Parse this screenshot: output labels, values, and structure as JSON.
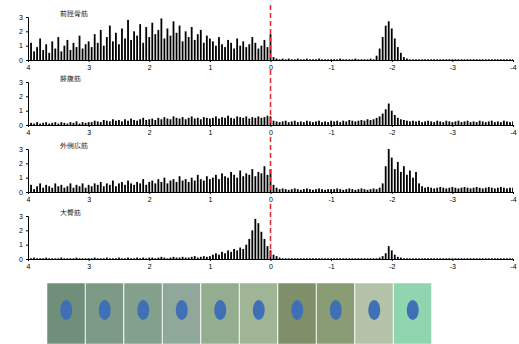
{
  "chart_data": [
    {
      "type": "bar",
      "title": "前脛骨筋",
      "color": "#000000",
      "x": [
        4,
        3.95,
        3.9,
        3.85,
        3.8,
        3.75,
        3.7,
        3.65,
        3.6,
        3.55,
        3.5,
        3.45,
        3.4,
        3.35,
        3.3,
        3.25,
        3.2,
        3.15,
        3.1,
        3.05,
        3,
        2.95,
        2.9,
        2.85,
        2.8,
        2.75,
        2.7,
        2.65,
        2.6,
        2.55,
        2.5,
        2.45,
        2.4,
        2.35,
        2.3,
        2.25,
        2.2,
        2.15,
        2.1,
        2.05,
        2,
        1.95,
        1.9,
        1.85,
        1.8,
        1.75,
        1.7,
        1.65,
        1.6,
        1.55,
        1.5,
        1.45,
        1.4,
        1.35,
        1.3,
        1.25,
        1.2,
        1.15,
        1.1,
        1.05,
        1,
        0.95,
        0.9,
        0.85,
        0.8,
        0.75,
        0.7,
        0.65,
        0.6,
        0.55,
        0.5,
        0.45,
        0.4,
        0.35,
        0.3,
        0.25,
        0.2,
        0.15,
        0.1,
        0.05,
        0,
        -0.05,
        -0.1,
        -0.15,
        -0.2,
        -0.25,
        -0.3,
        -0.35,
        -0.4,
        -0.45,
        -0.5,
        -0.55,
        -0.6,
        -0.65,
        -0.7,
        -0.75,
        -0.8,
        -0.85,
        -0.9,
        -0.95,
        -1,
        -1.05,
        -1.1,
        -1.15,
        -1.2,
        -1.25,
        -1.3,
        -1.35,
        -1.4,
        -1.45,
        -1.5,
        -1.55,
        -1.6,
        -1.65,
        -1.7,
        -1.75,
        -1.8,
        -1.85,
        -1.9,
        -1.95,
        -2,
        -2.05,
        -2.1,
        -2.15,
        -2.2,
        -2.25,
        -2.3,
        -2.35,
        -2.4,
        -2.45,
        -2.5,
        -2.55,
        -2.6,
        -2.65,
        -2.7,
        -2.75,
        -2.8,
        -2.85,
        -2.9,
        -2.95,
        -3,
        -3.05,
        -3.1,
        -3.15,
        -3.2,
        -3.25,
        -3.3,
        -3.35,
        -3.4,
        -3.45,
        -3.5,
        -3.55,
        -3.6,
        -3.65,
        -3.7,
        -3.75,
        -3.8,
        -3.85,
        -3.9,
        -3.95,
        -4
      ],
      "values": [
        0.4,
        1.2,
        0.6,
        0.9,
        1.5,
        0.7,
        1.1,
        0.5,
        1.3,
        0.8,
        1.6,
        0.6,
        1.0,
        1.4,
        0.7,
        1.2,
        0.9,
        1.7,
        0.8,
        1.1,
        1.3,
        0.9,
        1.8,
        1.2,
        2.1,
        1.0,
        1.6,
        2.4,
        1.3,
        1.9,
        1.1,
        2.2,
        1.5,
        2.8,
        1.4,
        2.0,
        1.7,
        2.5,
        1.2,
        2.3,
        1.6,
        2.6,
        1.8,
        2.1,
        2.9,
        1.5,
        2.2,
        1.7,
        2.7,
        1.9,
        2.4,
        1.3,
        2.0,
        1.6,
        2.3,
        1.4,
        1.8,
        2.1,
        1.2,
        1.7,
        1.5,
        1.3,
        1.0,
        1.6,
        1.1,
        0.9,
        1.4,
        1.2,
        0.8,
        1.5,
        1.0,
        1.3,
        0.9,
        1.1,
        1.6,
        1.2,
        0.8,
        1.0,
        1.4,
        0.9,
        1.8,
        0.2,
        0.1,
        0.05,
        0.1,
        0.05,
        0.1,
        0.05,
        0.05,
        0.1,
        0.05,
        0.05,
        0.1,
        0.05,
        0.05,
        0.05,
        0.1,
        0.05,
        0.05,
        0.05,
        0.05,
        0.05,
        0.05,
        0.1,
        0.05,
        0.05,
        0.05,
        0.05,
        0.1,
        0.05,
        0.05,
        0.05,
        0.05,
        0.1,
        0.05,
        0.3,
        0.8,
        1.6,
        2.4,
        2.7,
        2.2,
        1.5,
        0.9,
        0.5,
        0.2,
        0.1,
        0.05,
        0.05,
        0.05,
        0.05,
        0.05,
        0.05,
        0.05,
        0.05,
        0.05,
        0.05,
        0.05,
        0.05,
        0.05,
        0.05,
        0.05,
        0.05,
        0.05,
        0.05,
        0.05,
        0.05,
        0.05,
        0.05,
        0.05,
        0.05,
        0.05,
        0.05,
        0.05,
        0.05,
        0.05,
        0.05,
        0.05,
        0.05,
        0.05,
        0.05,
        0.05
      ],
      "xlim": [
        4,
        -4
      ],
      "ylim": [
        0,
        3
      ],
      "xticks": [
        4,
        3,
        2,
        1,
        0,
        -1,
        -2,
        -3,
        -4
      ],
      "yticks": [
        0,
        1,
        2,
        3
      ],
      "vline": {
        "x": 0,
        "color": "#e8262a",
        "line_style": "dashed"
      }
    },
    {
      "type": "bar",
      "title": "腓腹筋",
      "color": "#000000",
      "x": [
        4,
        3.95,
        3.9,
        3.85,
        3.8,
        3.75,
        3.7,
        3.65,
        3.6,
        3.55,
        3.5,
        3.45,
        3.4,
        3.35,
        3.3,
        3.25,
        3.2,
        3.15,
        3.1,
        3.05,
        3,
        2.95,
        2.9,
        2.85,
        2.8,
        2.75,
        2.7,
        2.65,
        2.6,
        2.55,
        2.5,
        2.45,
        2.4,
        2.35,
        2.3,
        2.25,
        2.2,
        2.15,
        2.1,
        2.05,
        2,
        1.95,
        1.9,
        1.85,
        1.8,
        1.75,
        1.7,
        1.65,
        1.6,
        1.55,
        1.5,
        1.45,
        1.4,
        1.35,
        1.3,
        1.25,
        1.2,
        1.15,
        1.1,
        1.05,
        1,
        0.95,
        0.9,
        0.85,
        0.8,
        0.75,
        0.7,
        0.65,
        0.6,
        0.55,
        0.5,
        0.45,
        0.4,
        0.35,
        0.3,
        0.25,
        0.2,
        0.15,
        0.1,
        0.05,
        0,
        -0.05,
        -0.1,
        -0.15,
        -0.2,
        -0.25,
        -0.3,
        -0.35,
        -0.4,
        -0.45,
        -0.5,
        -0.55,
        -0.6,
        -0.65,
        -0.7,
        -0.75,
        -0.8,
        -0.85,
        -0.9,
        -0.95,
        -1,
        -1.05,
        -1.1,
        -1.15,
        -1.2,
        -1.25,
        -1.3,
        -1.35,
        -1.4,
        -1.45,
        -1.5,
        -1.55,
        -1.6,
        -1.65,
        -1.7,
        -1.75,
        -1.8,
        -1.85,
        -1.9,
        -1.95,
        -2,
        -2.05,
        -2.1,
        -2.15,
        -2.2,
        -2.25,
        -2.3,
        -2.35,
        -2.4,
        -2.45,
        -2.5,
        -2.55,
        -2.6,
        -2.65,
        -2.7,
        -2.75,
        -2.8,
        -2.85,
        -2.9,
        -2.95,
        -3,
        -3.05,
        -3.1,
        -3.15,
        -3.2,
        -3.25,
        -3.3,
        -3.35,
        -3.4,
        -3.45,
        -3.5,
        -3.55,
        -3.6,
        -3.65,
        -3.7,
        -3.75,
        -3.8,
        -3.85,
        -3.9,
        -3.95,
        -4
      ],
      "values": [
        0.1,
        0.15,
        0.1,
        0.2,
        0.1,
        0.15,
        0.2,
        0.1,
        0.15,
        0.2,
        0.1,
        0.2,
        0.15,
        0.1,
        0.2,
        0.15,
        0.25,
        0.1,
        0.2,
        0.15,
        0.2,
        0.2,
        0.3,
        0.25,
        0.2,
        0.35,
        0.3,
        0.25,
        0.4,
        0.3,
        0.35,
        0.25,
        0.4,
        0.3,
        0.45,
        0.35,
        0.3,
        0.4,
        0.5,
        0.35,
        0.4,
        0.45,
        0.35,
        0.5,
        0.4,
        0.55,
        0.45,
        0.4,
        0.6,
        0.5,
        0.45,
        0.55,
        0.4,
        0.5,
        0.6,
        0.45,
        0.5,
        0.4,
        0.55,
        0.5,
        0.45,
        0.5,
        0.6,
        0.45,
        0.55,
        0.5,
        0.65,
        0.5,
        0.45,
        0.6,
        0.55,
        0.5,
        0.6,
        0.45,
        0.55,
        0.5,
        0.6,
        0.5,
        0.55,
        0.65,
        0.6,
        0.3,
        0.25,
        0.2,
        0.25,
        0.3,
        0.2,
        0.25,
        0.3,
        0.2,
        0.25,
        0.2,
        0.3,
        0.25,
        0.2,
        0.25,
        0.3,
        0.2,
        0.25,
        0.2,
        0.3,
        0.25,
        0.3,
        0.2,
        0.3,
        0.25,
        0.35,
        0.3,
        0.25,
        0.3,
        0.35,
        0.3,
        0.4,
        0.35,
        0.4,
        0.5,
        0.6,
        0.8,
        1.1,
        1.5,
        1.0,
        0.7,
        0.5,
        0.4,
        0.35,
        0.3,
        0.25,
        0.3,
        0.25,
        0.3,
        0.2,
        0.25,
        0.3,
        0.25,
        0.2,
        0.3,
        0.25,
        0.2,
        0.3,
        0.25,
        0.2,
        0.25,
        0.3,
        0.2,
        0.25,
        0.3,
        0.2,
        0.25,
        0.2,
        0.3,
        0.25,
        0.2,
        0.25,
        0.3,
        0.2,
        0.25,
        0.2,
        0.3,
        0.25,
        0.2,
        0.25
      ],
      "xlim": [
        4,
        -4
      ],
      "ylim": [
        0,
        3
      ],
      "xticks": [
        4,
        3,
        2,
        1,
        0,
        -1,
        -2,
        -3,
        -4
      ],
      "yticks": [
        0,
        1,
        2,
        3
      ],
      "vline": {
        "x": 0,
        "color": "#e8262a",
        "line_style": "dashed"
      }
    },
    {
      "type": "bar",
      "title": "外側広筋",
      "color": "#000000",
      "x": [
        4,
        3.95,
        3.9,
        3.85,
        3.8,
        3.75,
        3.7,
        3.65,
        3.6,
        3.55,
        3.5,
        3.45,
        3.4,
        3.35,
        3.3,
        3.25,
        3.2,
        3.15,
        3.1,
        3.05,
        3,
        2.95,
        2.9,
        2.85,
        2.8,
        2.75,
        2.7,
        2.65,
        2.6,
        2.55,
        2.5,
        2.45,
        2.4,
        2.35,
        2.3,
        2.25,
        2.2,
        2.15,
        2.1,
        2.05,
        2,
        1.95,
        1.9,
        1.85,
        1.8,
        1.75,
        1.7,
        1.65,
        1.6,
        1.55,
        1.5,
        1.45,
        1.4,
        1.35,
        1.3,
        1.25,
        1.2,
        1.15,
        1.1,
        1.05,
        1,
        0.95,
        0.9,
        0.85,
        0.8,
        0.75,
        0.7,
        0.65,
        0.6,
        0.55,
        0.5,
        0.45,
        0.4,
        0.35,
        0.3,
        0.25,
        0.2,
        0.15,
        0.1,
        0.05,
        0,
        -0.05,
        -0.1,
        -0.15,
        -0.2,
        -0.25,
        -0.3,
        -0.35,
        -0.4,
        -0.45,
        -0.5,
        -0.55,
        -0.6,
        -0.65,
        -0.7,
        -0.75,
        -0.8,
        -0.85,
        -0.9,
        -0.95,
        -1,
        -1.05,
        -1.1,
        -1.15,
        -1.2,
        -1.25,
        -1.3,
        -1.35,
        -1.4,
        -1.45,
        -1.5,
        -1.55,
        -1.6,
        -1.65,
        -1.7,
        -1.75,
        -1.8,
        -1.85,
        -1.9,
        -1.95,
        -2,
        -2.05,
        -2.1,
        -2.15,
        -2.2,
        -2.25,
        -2.3,
        -2.35,
        -2.4,
        -2.45,
        -2.5,
        -2.55,
        -2.6,
        -2.65,
        -2.7,
        -2.75,
        -2.8,
        -2.85,
        -2.9,
        -2.95,
        -3,
        -3.05,
        -3.1,
        -3.15,
        -3.2,
        -3.25,
        -3.3,
        -3.35,
        -3.4,
        -3.45,
        -3.5,
        -3.55,
        -3.6,
        -3.65,
        -3.7,
        -3.75,
        -3.8,
        -3.85,
        -3.9,
        -3.95,
        -4
      ],
      "values": [
        0.3,
        0.5,
        0.2,
        0.4,
        0.6,
        0.3,
        0.5,
        0.4,
        0.3,
        0.6,
        0.4,
        0.5,
        0.3,
        0.4,
        0.6,
        0.3,
        0.5,
        0.4,
        0.6,
        0.3,
        0.5,
        0.4,
        0.6,
        0.5,
        0.7,
        0.4,
        0.6,
        0.5,
        0.8,
        0.4,
        0.6,
        0.7,
        0.5,
        0.8,
        0.6,
        0.5,
        0.7,
        0.6,
        0.9,
        0.5,
        0.7,
        0.8,
        0.6,
        0.9,
        0.7,
        1.0,
        0.6,
        0.8,
        0.9,
        0.7,
        1.1,
        0.8,
        0.9,
        0.7,
        1.0,
        0.8,
        1.2,
        0.9,
        0.8,
        1.1,
        0.9,
        1.0,
        1.2,
        0.9,
        1.3,
        1.1,
        1.0,
        1.4,
        1.2,
        1.0,
        1.5,
        1.1,
        1.3,
        1.2,
        1.6,
        1.1,
        1.4,
        1.3,
        1.8,
        1.2,
        1.6,
        0.5,
        0.3,
        0.2,
        0.25,
        0.2,
        0.15,
        0.2,
        0.25,
        0.2,
        0.15,
        0.2,
        0.25,
        0.2,
        0.15,
        0.2,
        0.25,
        0.2,
        0.15,
        0.2,
        0.2,
        0.2,
        0.25,
        0.2,
        0.15,
        0.2,
        0.25,
        0.2,
        0.15,
        0.2,
        0.25,
        0.2,
        0.15,
        0.2,
        0.25,
        0.2,
        0.3,
        0.6,
        1.8,
        3.0,
        2.4,
        1.6,
        2.1,
        1.4,
        1.8,
        1.2,
        1.5,
        1.0,
        1.4,
        0.6,
        0.4,
        0.3,
        0.35,
        0.3,
        0.25,
        0.3,
        0.35,
        0.3,
        0.25,
        0.3,
        0.35,
        0.3,
        0.25,
        0.3,
        0.35,
        0.3,
        0.25,
        0.3,
        0.35,
        0.3,
        0.25,
        0.3,
        0.35,
        0.3,
        0.25,
        0.3,
        0.35,
        0.3,
        0.25,
        0.3,
        0.3
      ],
      "xlim": [
        4,
        -4
      ],
      "ylim": [
        0,
        3
      ],
      "xticks": [
        4,
        3,
        2,
        1,
        0,
        -1,
        -2,
        -3,
        -4
      ],
      "yticks": [
        0,
        1,
        2,
        3
      ],
      "vline": {
        "x": 0,
        "color": "#e8262a",
        "line_style": "dashed"
      }
    },
    {
      "type": "bar",
      "title": "大臀筋",
      "color": "#000000",
      "x": [
        4,
        3.95,
        3.9,
        3.85,
        3.8,
        3.75,
        3.7,
        3.65,
        3.6,
        3.55,
        3.5,
        3.45,
        3.4,
        3.35,
        3.3,
        3.25,
        3.2,
        3.15,
        3.1,
        3.05,
        3,
        2.95,
        2.9,
        2.85,
        2.8,
        2.75,
        2.7,
        2.65,
        2.6,
        2.55,
        2.5,
        2.45,
        2.4,
        2.35,
        2.3,
        2.25,
        2.2,
        2.15,
        2.1,
        2.05,
        2,
        1.95,
        1.9,
        1.85,
        1.8,
        1.75,
        1.7,
        1.65,
        1.6,
        1.55,
        1.5,
        1.45,
        1.4,
        1.35,
        1.3,
        1.25,
        1.2,
        1.15,
        1.1,
        1.05,
        1,
        0.95,
        0.9,
        0.85,
        0.8,
        0.75,
        0.7,
        0.65,
        0.6,
        0.55,
        0.5,
        0.45,
        0.4,
        0.35,
        0.3,
        0.25,
        0.2,
        0.15,
        0.1,
        0.05,
        0,
        -0.05,
        -0.1,
        -0.15,
        -0.2,
        -0.25,
        -0.3,
        -0.35,
        -0.4,
        -0.45,
        -0.5,
        -0.55,
        -0.6,
        -0.65,
        -0.7,
        -0.75,
        -0.8,
        -0.85,
        -0.9,
        -0.95,
        -1,
        -1.05,
        -1.1,
        -1.15,
        -1.2,
        -1.25,
        -1.3,
        -1.35,
        -1.4,
        -1.45,
        -1.5,
        -1.55,
        -1.6,
        -1.65,
        -1.7,
        -1.75,
        -1.8,
        -1.85,
        -1.9,
        -1.95,
        -2,
        -2.05,
        -2.1,
        -2.15,
        -2.2,
        -2.25,
        -2.3,
        -2.35,
        -2.4,
        -2.45,
        -2.5,
        -2.55,
        -2.6,
        -2.65,
        -2.7,
        -2.75,
        -2.8,
        -2.85,
        -2.9,
        -2.95,
        -3,
        -3.05,
        -3.1,
        -3.15,
        -3.2,
        -3.25,
        -3.3,
        -3.35,
        -3.4,
        -3.45,
        -3.5,
        -3.55,
        -3.6,
        -3.65,
        -3.7,
        -3.75,
        -3.8,
        -3.85,
        -3.9,
        -3.95,
        -4
      ],
      "values": [
        0.05,
        0.05,
        0.1,
        0.05,
        0.05,
        0.05,
        0.1,
        0.05,
        0.05,
        0.05,
        0.05,
        0.1,
        0.05,
        0.05,
        0.05,
        0.05,
        0.1,
        0.05,
        0.05,
        0.05,
        0.05,
        0.05,
        0.1,
        0.05,
        0.05,
        0.05,
        0.1,
        0.05,
        0.05,
        0.05,
        0.1,
        0.05,
        0.05,
        0.1,
        0.05,
        0.05,
        0.1,
        0.05,
        0.1,
        0.05,
        0.1,
        0.1,
        0.05,
        0.1,
        0.15,
        0.1,
        0.05,
        0.1,
        0.15,
        0.1,
        0.1,
        0.15,
        0.1,
        0.1,
        0.15,
        0.2,
        0.1,
        0.15,
        0.2,
        0.15,
        0.2,
        0.3,
        0.4,
        0.3,
        0.5,
        0.4,
        0.6,
        0.5,
        0.7,
        0.6,
        0.8,
        0.7,
        1.0,
        1.4,
        2.0,
        2.8,
        2.5,
        1.9,
        1.4,
        0.9,
        0.6,
        0.3,
        0.2,
        0.1,
        0.05,
        0.05,
        0.05,
        0.05,
        0.05,
        0.05,
        0.05,
        0.05,
        0.05,
        0.05,
        0.05,
        0.05,
        0.05,
        0.05,
        0.05,
        0.05,
        0.05,
        0.05,
        0.05,
        0.05,
        0.05,
        0.05,
        0.05,
        0.05,
        0.05,
        0.05,
        0.05,
        0.05,
        0.05,
        0.05,
        0.05,
        0.05,
        0.1,
        0.2,
        0.4,
        0.9,
        0.6,
        0.3,
        0.15,
        0.1,
        0.05,
        0.05,
        0.05,
        0.05,
        0.05,
        0.05,
        0.05,
        0.05,
        0.05,
        0.05,
        0.05,
        0.05,
        0.05,
        0.05,
        0.05,
        0.05,
        0.05,
        0.05,
        0.05,
        0.05,
        0.05,
        0.05,
        0.05,
        0.05,
        0.05,
        0.05,
        0.05,
        0.05,
        0.05,
        0.05,
        0.05,
        0.05,
        0.05,
        0.05,
        0.05,
        0.05,
        0.05
      ],
      "xlim": [
        4,
        -4
      ],
      "ylim": [
        0,
        3
      ],
      "xticks": [
        4,
        3,
        2,
        1,
        0,
        -1,
        -2,
        -3,
        -4
      ],
      "yticks": [
        0,
        1,
        2,
        3
      ],
      "vline": {
        "x": 0,
        "color": "#e8262a",
        "line_style": "dashed"
      }
    }
  ]
}
